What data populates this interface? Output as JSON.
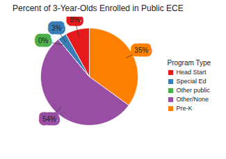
{
  "chart_data": {
    "type": "pie",
    "title": "Percent of 3-Year-Olds Enrolled in Public ECE",
    "legend_title": "Program Type",
    "categories": [
      "Head Start",
      "Special Ed",
      "Other public",
      "Other/None",
      "Pre-K"
    ],
    "values": [
      8,
      3,
      0,
      54,
      35
    ],
    "value_labels": [
      "8%",
      "3%",
      "0%",
      "54%",
      "35%"
    ],
    "colors": [
      "#e41a1c",
      "#377eb8",
      "#4daf4a",
      "#984ea3",
      "#ff7f00"
    ],
    "data_labels": true,
    "legend": "right"
  }
}
